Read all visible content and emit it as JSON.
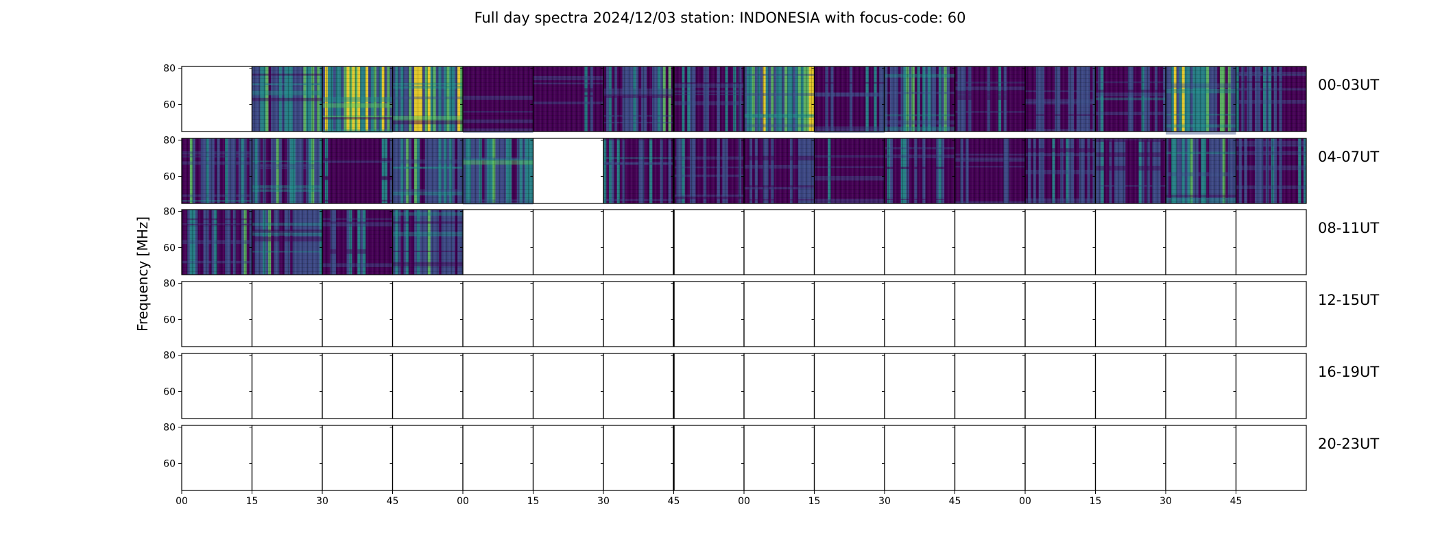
{
  "chart_data": {
    "type": "heatmap",
    "title": "Full day spectra 2024/12/03 station: INDONESIA with focus-code: 60",
    "ylabel": "Frequency [MHz]",
    "yticks": [
      "60",
      "80"
    ],
    "ylim": [
      45,
      81
    ],
    "xticks": [
      "00",
      "15",
      "30",
      "45",
      "00",
      "15",
      "30",
      "45",
      "00",
      "15",
      "30",
      "45",
      "00",
      "15",
      "30",
      "45"
    ],
    "colormap": [
      "#440154",
      "#3b528b",
      "#21918c",
      "#5ec962",
      "#fde725"
    ],
    "rows": [
      {
        "label": "00-03UT",
        "intensity": [
          null,
          0.55,
          0.75,
          0.8,
          0.2,
          0.15,
          0.4,
          0.3,
          0.7,
          0.25,
          0.5,
          0.3,
          0.35,
          0.3,
          0.6,
          0.3
        ]
      },
      {
        "label": "04-07UT",
        "intensity": [
          0.35,
          0.45,
          0.2,
          0.55,
          0.6,
          null,
          0.3,
          0.3,
          0.35,
          0.2,
          0.3,
          0.25,
          0.3,
          0.4,
          0.45,
          0.3
        ]
      },
      {
        "label": "08-11UT",
        "intensity": [
          0.35,
          0.4,
          0.3,
          0.45,
          null,
          null,
          null,
          null,
          null,
          null,
          null,
          null,
          null,
          null,
          null,
          null
        ]
      },
      {
        "label": "12-15UT",
        "intensity": [
          null,
          null,
          null,
          null,
          null,
          null,
          null,
          null,
          null,
          null,
          null,
          null,
          null,
          null,
          null,
          null
        ]
      },
      {
        "label": "16-19UT",
        "intensity": [
          null,
          null,
          null,
          null,
          null,
          null,
          null,
          null,
          null,
          null,
          null,
          null,
          null,
          null,
          null,
          null
        ]
      },
      {
        "label": "20-23UT",
        "intensity": [
          null,
          null,
          null,
          null,
          null,
          null,
          null,
          null,
          null,
          null,
          null,
          null,
          null,
          null,
          null,
          null
        ]
      }
    ]
  }
}
